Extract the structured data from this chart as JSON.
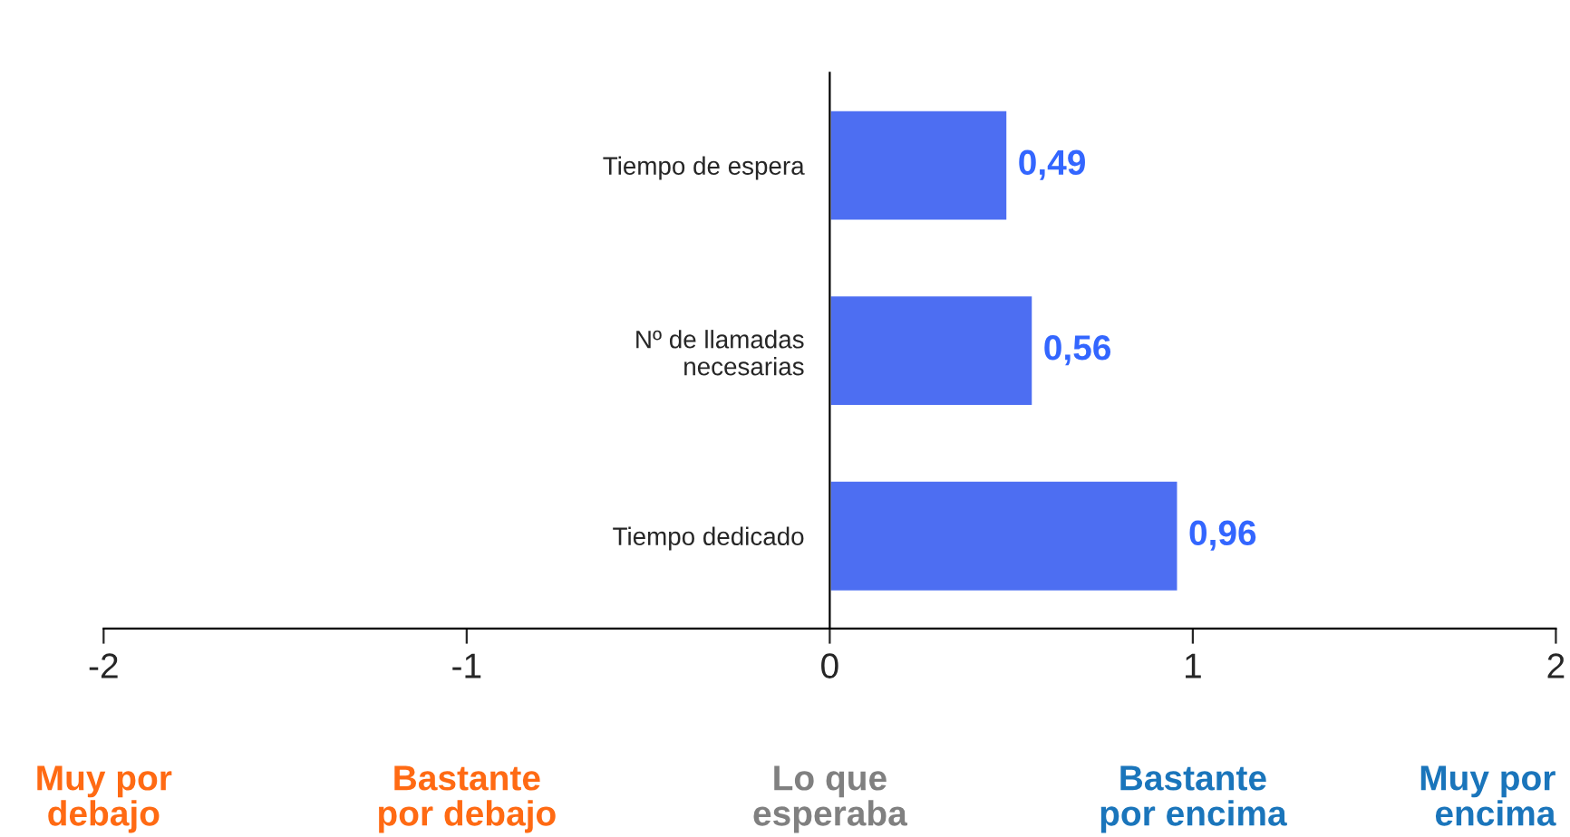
{
  "chart_data": {
    "type": "bar",
    "orientation": "horizontal",
    "categories": [
      "Tiempo de espera",
      "Nº de llamadas\nnecesarias",
      "Tiempo dedicado"
    ],
    "values": [
      0.49,
      0.56,
      0.96
    ],
    "color": "#4d6ef2",
    "value_labels": [
      "0,49",
      "0,56",
      "0,96"
    ],
    "xlim": [
      -2,
      2
    ],
    "xticks": [
      -2,
      -1,
      0,
      1,
      2
    ],
    "annotations": [
      "Muy por\ndebajo",
      "Bastante\npor debajo",
      "Lo que\nesperaba",
      "Bastante\npor encima",
      "Muy por\nencima"
    ],
    "grid": false,
    "legend": false
  }
}
